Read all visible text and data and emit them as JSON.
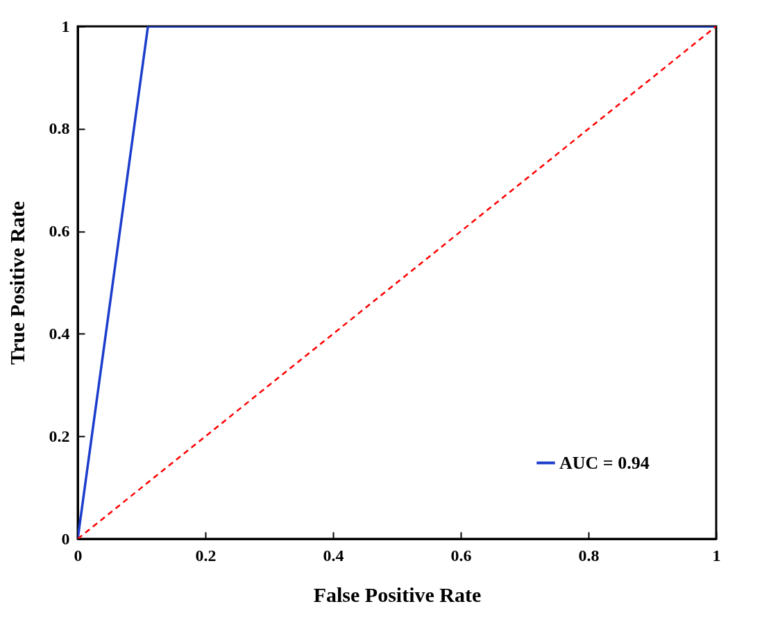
{
  "chart_data": {
    "type": "line",
    "xlabel": "False Positive Rate",
    "ylabel": "True Positive Rate",
    "xlim": [
      0,
      1
    ],
    "ylim": [
      0,
      1
    ],
    "xticks": [
      0,
      0.2,
      0.4,
      0.6,
      0.8,
      1
    ],
    "yticks": [
      0,
      0.2,
      0.4,
      0.6,
      0.8,
      1
    ],
    "grid": false,
    "legend": "bottom right",
    "marker": "none",
    "series": [
      {
        "name": "AUC = 0.94",
        "color": "#1c3dcc",
        "x": [
          0,
          0.11,
          1
        ],
        "values": [
          0,
          1,
          1
        ],
        "line_style": "solid"
      },
      {
        "color": "#ff0000",
        "x": [
          0,
          1
        ],
        "values": [
          0,
          1
        ],
        "line_style": "dashed"
      }
    ]
  }
}
